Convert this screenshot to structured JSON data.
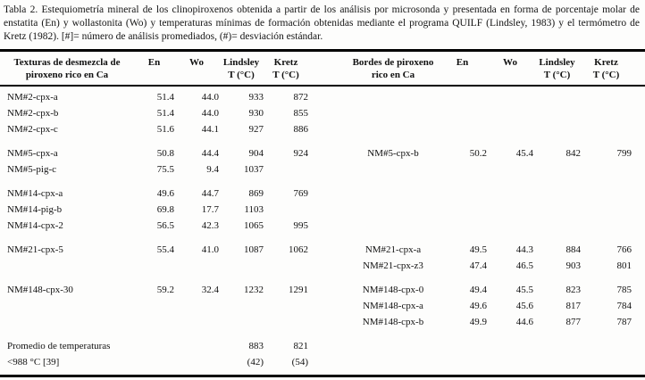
{
  "colors": {
    "text": "#111111",
    "background": "#fdfdfc",
    "rule": "#000000"
  },
  "caption": "Tabla 2. Estequiometría mineral de los clinopiroxenos obtenida a partir de los análisis por microsonda y presentada en forma de porcentaje molar de enstatita (En) y wollastonita (Wo) y temperaturas mínimas de formación obtenidas mediante el programa QUILF (Lindsley, 1983) y el termómetro de Kretz (1982). [#]= número de análisis promediados, (#)= desviación estándar.",
  "header": {
    "left_group": {
      "line1": "Texturas de desmezcla de",
      "line2": "piroxeno rico en Ca"
    },
    "en_left": "En",
    "wo_left": "Wo",
    "lindsley_left": {
      "line1": "Lindsley",
      "line2": "T (°C)"
    },
    "kretz_left": {
      "line1": "Kretz",
      "line2": "T (°C)"
    },
    "right_group": {
      "line1": "Bordes de piroxeno",
      "line2": "rico en Ca"
    },
    "en_right": "En",
    "wo_right": "Wo",
    "lindsley_right": {
      "line1": "Lindsley",
      "line2": "T (°C)"
    },
    "kretz_right": {
      "line1": "Kretz",
      "line2": "T (°C)"
    }
  },
  "rows": [
    {
      "cells": [
        "NM#2-cpx-a",
        "51.4",
        "44.0",
        "933",
        "872",
        "",
        "",
        "",
        "",
        ""
      ]
    },
    {
      "cells": [
        "NM#2-cpx-b",
        "51.4",
        "44.0",
        "930",
        "855",
        "",
        "",
        "",
        "",
        ""
      ]
    },
    {
      "cells": [
        "NM#2-cpx-c",
        "51.6",
        "44.1",
        "927",
        "886",
        "",
        "",
        "",
        "",
        ""
      ]
    },
    {
      "gap_before": true,
      "cells": [
        "NM#5-cpx-a",
        "50.8",
        "44.4",
        "904",
        "924",
        "NM#5-cpx-b",
        "50.2",
        "45.4",
        "842",
        "799"
      ]
    },
    {
      "cells": [
        "NM#5-pig-c",
        "75.5",
        "9.4",
        "1037",
        "",
        "",
        "",
        "",
        "",
        ""
      ]
    },
    {
      "gap_before": true,
      "cells": [
        "NM#14-cpx-a",
        "49.6",
        "44.7",
        "869",
        "769",
        "",
        "",
        "",
        "",
        ""
      ]
    },
    {
      "cells": [
        "NM#14-pig-b",
        "69.8",
        "17.7",
        "1103",
        "",
        "",
        "",
        "",
        "",
        ""
      ]
    },
    {
      "cells": [
        "NM#14-cpx-2",
        "56.5",
        "42.3",
        "1065",
        "995",
        "",
        "",
        "",
        "",
        ""
      ]
    },
    {
      "gap_before": true,
      "cells": [
        "NM#21-cpx-5",
        "55.4",
        "41.0",
        "1087",
        "1062",
        "NM#21-cpx-a",
        "49.5",
        "44.3",
        "884",
        "766"
      ]
    },
    {
      "cells": [
        "",
        "",
        "",
        "",
        "",
        "NM#21-cpx-z3",
        "47.4",
        "46.5",
        "903",
        "801"
      ]
    },
    {
      "gap_before": true,
      "cells": [
        "NM#148-cpx-30",
        "59.2",
        "32.4",
        "1232",
        "1291",
        "NM#148-cpx-0",
        "49.4",
        "45.5",
        "823",
        "785"
      ]
    },
    {
      "cells": [
        "",
        "",
        "",
        "",
        "",
        "NM#148-cpx-a",
        "49.6",
        "45.6",
        "817",
        "784"
      ]
    },
    {
      "cells": [
        "",
        "",
        "",
        "",
        "",
        "NM#148-cpx-b",
        "49.9",
        "44.6",
        "877",
        "787"
      ]
    },
    {
      "gap_before": true,
      "cells": [
        "Promedio de temperaturas",
        "",
        "",
        "883",
        "821",
        "",
        "",
        "",
        "",
        ""
      ]
    },
    {
      "cells": [
        "<988 °C [39]",
        "",
        "",
        "(42)",
        "(54)",
        "",
        "",
        "",
        "",
        ""
      ]
    }
  ]
}
